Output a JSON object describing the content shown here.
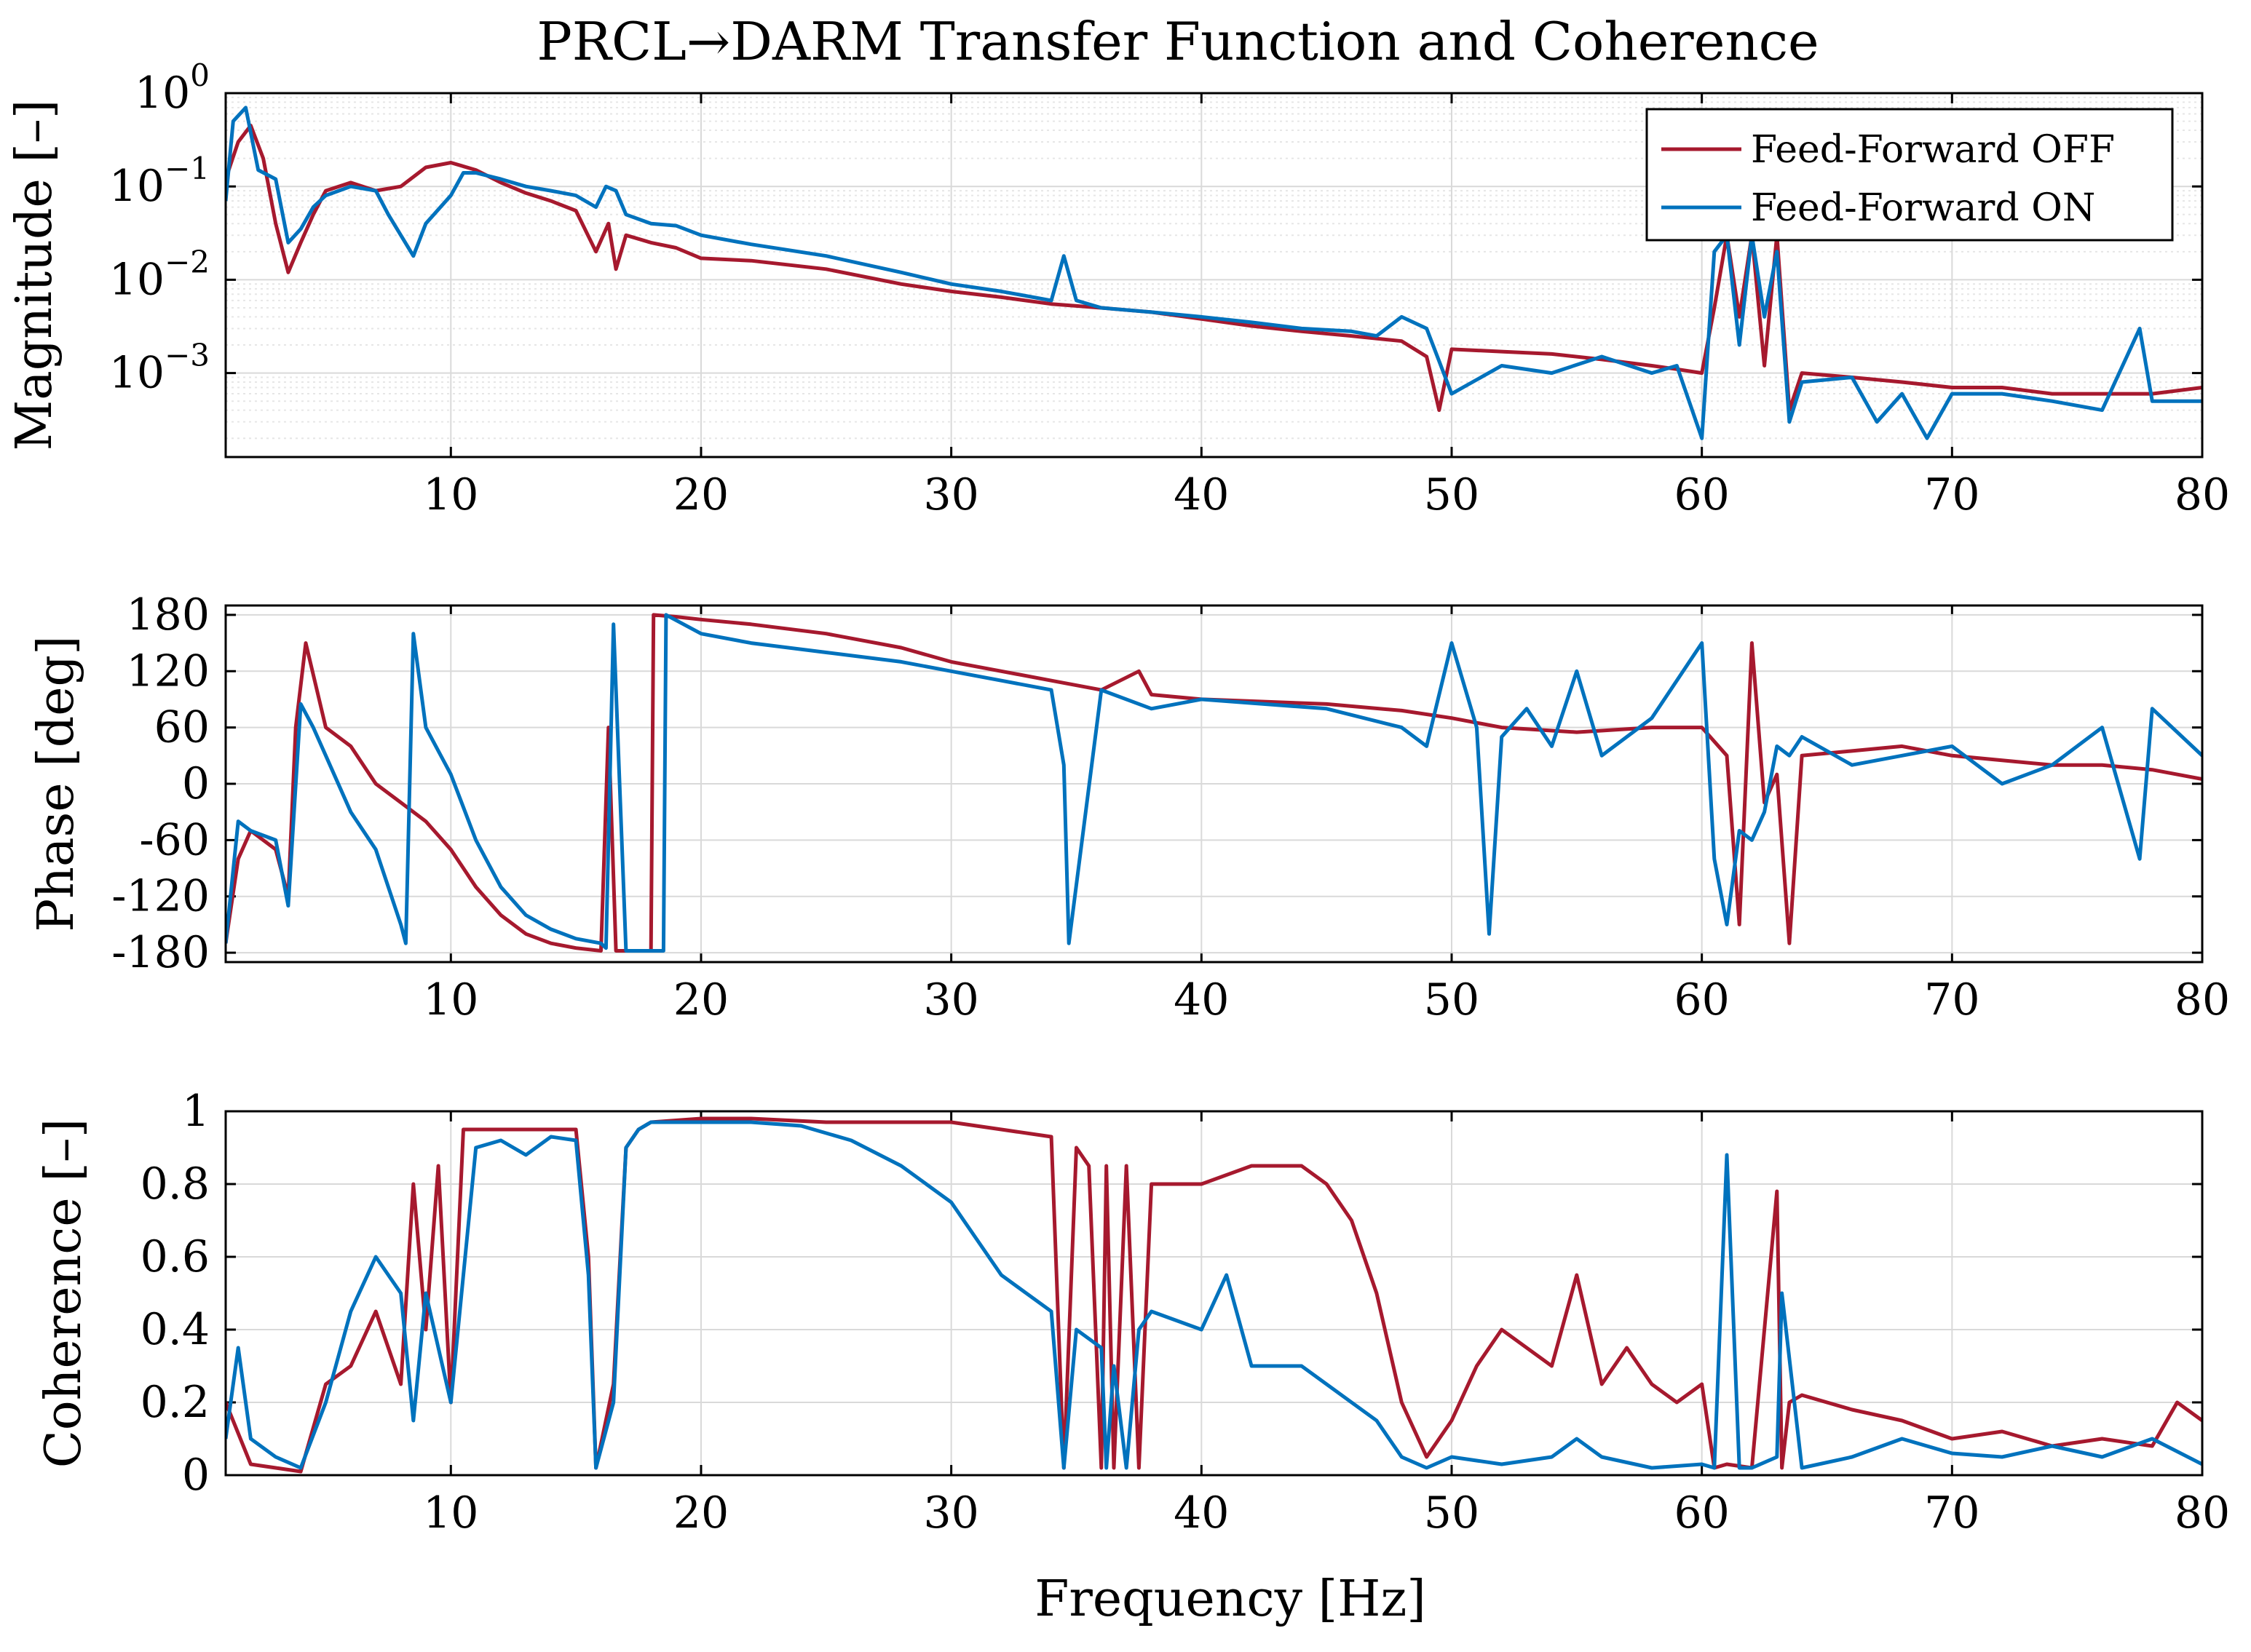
{
  "figure": {
    "title": "PRCL→DARM Transfer Function and Coherence",
    "xlabel": "Frequency [Hz]"
  },
  "colors": {
    "ff_off": "#A6192E",
    "ff_on": "#0072BD",
    "grid": "#d9d9d9",
    "minor_grid": "#e6e6e6"
  },
  "legend": {
    "entries": [
      {
        "name": "Feed-Forward OFF",
        "color_key": "ff_off"
      },
      {
        "name": "Feed-Forward ON",
        "color_key": "ff_on"
      }
    ]
  },
  "chart_data": [
    {
      "type": "line",
      "id": "magnitude",
      "title": "PRCL→DARM Transfer Function and Coherence",
      "ylabel": "Magnitude [–]",
      "xlabel": "",
      "xlim": [
        1,
        80
      ],
      "ylim_log10": [
        -3.9,
        0
      ],
      "yscale": "log",
      "xticks": [
        10,
        20,
        30,
        40,
        50,
        60,
        70,
        80
      ],
      "xtick_labels": [
        "10",
        "20",
        "30",
        "40",
        "50",
        "60",
        "70",
        "80"
      ],
      "yticks_log10": [
        0,
        -1,
        -2,
        -3
      ],
      "ytick_labels": [
        {
          "base": "10",
          "exp": "0"
        },
        {
          "base": "10",
          "exp": "−1"
        },
        {
          "base": "10",
          "exp": "−2"
        },
        {
          "base": "10",
          "exp": "−3"
        }
      ],
      "series": [
        {
          "name": "Feed-Forward OFF",
          "x": [
            1,
            1.5,
            2,
            2.5,
            3,
            3.5,
            4,
            4.5,
            5,
            6,
            7,
            8,
            9,
            10,
            11,
            12,
            13,
            14,
            15,
            15.8,
            16.3,
            16.6,
            17,
            18,
            19,
            20,
            22,
            25,
            28,
            30,
            32,
            34,
            36,
            38,
            40,
            42,
            44,
            46,
            48,
            49,
            49.5,
            50,
            52,
            54,
            56,
            58,
            59,
            60,
            60.5,
            61,
            61.5,
            62,
            62.5,
            63,
            63.5,
            64,
            66,
            68,
            70,
            72,
            74,
            76,
            78,
            80
          ],
          "y": [
            0.12,
            0.3,
            0.45,
            0.2,
            0.04,
            0.012,
            0.025,
            0.05,
            0.09,
            0.11,
            0.09,
            0.1,
            0.16,
            0.18,
            0.15,
            0.11,
            0.085,
            0.07,
            0.055,
            0.02,
            0.04,
            0.013,
            0.03,
            0.025,
            0.022,
            0.017,
            0.016,
            0.013,
            0.009,
            0.0075,
            0.0065,
            0.0055,
            0.005,
            0.0045,
            0.0038,
            0.0032,
            0.0028,
            0.0025,
            0.0022,
            0.0015,
            0.0004,
            0.0018,
            0.0017,
            0.0016,
            0.0014,
            0.0012,
            0.0011,
            0.001,
            0.005,
            0.03,
            0.004,
            0.03,
            0.0012,
            0.03,
            0.0004,
            0.001,
            0.0009,
            0.0008,
            0.0007,
            0.0007,
            0.0006,
            0.0006,
            0.0006,
            0.0007
          ]
        },
        {
          "name": "Feed-Forward ON",
          "x": [
            1,
            1.3,
            1.8,
            2.3,
            3,
            3.5,
            4,
            4.5,
            5,
            6,
            7,
            7.5,
            8.5,
            9,
            10,
            10.5,
            11,
            12,
            13,
            14,
            15,
            15.8,
            16.2,
            16.6,
            17,
            18,
            19,
            20,
            22,
            25,
            28,
            30,
            32,
            34,
            34.5,
            35,
            36,
            38,
            40,
            42,
            44,
            46,
            47,
            48,
            49,
            50,
            52,
            54,
            56,
            58,
            59,
            60,
            60.5,
            61,
            61.5,
            62,
            62.5,
            63,
            63.5,
            64,
            66,
            67,
            68,
            69,
            70,
            72,
            74,
            76,
            77.5,
            78,
            80
          ],
          "y": [
            0.07,
            0.5,
            0.7,
            0.15,
            0.12,
            0.025,
            0.035,
            0.06,
            0.08,
            0.1,
            0.09,
            0.05,
            0.018,
            0.04,
            0.08,
            0.14,
            0.14,
            0.12,
            0.1,
            0.09,
            0.08,
            0.06,
            0.1,
            0.09,
            0.05,
            0.04,
            0.038,
            0.03,
            0.024,
            0.018,
            0.012,
            0.009,
            0.0075,
            0.006,
            0.018,
            0.006,
            0.005,
            0.0045,
            0.004,
            0.0035,
            0.003,
            0.0028,
            0.0025,
            0.004,
            0.003,
            0.0006,
            0.0012,
            0.001,
            0.0015,
            0.001,
            0.0012,
            0.0002,
            0.02,
            0.03,
            0.002,
            0.03,
            0.004,
            0.02,
            0.0003,
            0.0008,
            0.0009,
            0.0003,
            0.0006,
            0.0002,
            0.0006,
            0.0006,
            0.0005,
            0.0004,
            0.003,
            0.0005,
            0.0005
          ]
        }
      ]
    },
    {
      "type": "line",
      "id": "phase",
      "ylabel": "Phase [deg]",
      "xlabel": "",
      "xlim": [
        1,
        80
      ],
      "ylim": [
        -190,
        190
      ],
      "xticks": [
        10,
        20,
        30,
        40,
        50,
        60,
        70,
        80
      ],
      "xtick_labels": [
        "10",
        "20",
        "30",
        "40",
        "50",
        "60",
        "70",
        "80"
      ],
      "yticks": [
        180,
        120,
        60,
        0,
        -60,
        -120,
        -180
      ],
      "ytick_labels": [
        "180",
        "120",
        "60",
        "0",
        "-60",
        "-120",
        "-180"
      ],
      "series": [
        {
          "name": "Feed-Forward OFF",
          "x": [
            1,
            1.5,
            2,
            3,
            3.5,
            3.8,
            4.2,
            5,
            6,
            7,
            8,
            9,
            10,
            11,
            12,
            13,
            14,
            15,
            16,
            16.3,
            16.6,
            18,
            18.1,
            19,
            20,
            22,
            25,
            28,
            30,
            32,
            34,
            36,
            37.5,
            38,
            40,
            45,
            48,
            50,
            52,
            55,
            58,
            60,
            61,
            61.5,
            62,
            62.5,
            63,
            63.5,
            64,
            66,
            68,
            70,
            72,
            74,
            76,
            78,
            80
          ],
          "y": [
            -170,
            -80,
            -50,
            -70,
            -120,
            60,
            150,
            60,
            40,
            0,
            -20,
            -40,
            -70,
            -110,
            -140,
            -160,
            -170,
            -175,
            -178,
            60,
            -178,
            -178,
            180,
            178,
            175,
            170,
            160,
            145,
            130,
            120,
            110,
            100,
            120,
            95,
            90,
            85,
            78,
            70,
            60,
            55,
            60,
            60,
            30,
            -150,
            150,
            -20,
            10,
            -170,
            30,
            35,
            40,
            30,
            25,
            20,
            20,
            15,
            5
          ]
        },
        {
          "name": "Feed-Forward ON",
          "x": [
            1,
            1.5,
            2,
            3,
            3.5,
            4,
            4.5,
            5,
            6,
            7,
            8,
            8.2,
            8.5,
            9,
            10,
            11,
            12,
            13,
            14,
            15,
            16,
            16.2,
            16.5,
            17,
            18.5,
            18.6,
            20,
            22,
            25,
            28,
            30,
            32,
            34,
            34.5,
            34.7,
            36,
            38,
            40,
            45,
            48,
            49,
            50,
            51,
            51.5,
            52,
            53,
            54,
            55,
            56,
            58,
            60,
            60.5,
            61,
            61.5,
            62,
            62.5,
            63,
            63.5,
            64,
            66,
            68,
            70,
            72,
            74,
            76,
            77.5,
            78,
            80
          ],
          "y": [
            -170,
            -40,
            -50,
            -60,
            -130,
            85,
            60,
            30,
            -30,
            -70,
            -150,
            -170,
            160,
            60,
            10,
            -60,
            -110,
            -140,
            -155,
            -165,
            -170,
            -175,
            170,
            -178,
            -178,
            180,
            160,
            150,
            140,
            130,
            120,
            110,
            100,
            20,
            -170,
            100,
            80,
            90,
            80,
            60,
            40,
            150,
            60,
            -160,
            50,
            80,
            40,
            120,
            30,
            70,
            150,
            -80,
            -150,
            -50,
            -60,
            -30,
            40,
            30,
            50,
            20,
            30,
            40,
            0,
            20,
            60,
            -80,
            80,
            30
          ]
        }
      ]
    },
    {
      "type": "line",
      "id": "coherence",
      "ylabel": "Coherence [–]",
      "xlabel": "Frequency [Hz]",
      "xlim": [
        1,
        80
      ],
      "ylim": [
        0,
        1
      ],
      "xticks": [
        10,
        20,
        30,
        40,
        50,
        60,
        70,
        80
      ],
      "xtick_labels": [
        "10",
        "20",
        "30",
        "40",
        "50",
        "60",
        "70",
        "80"
      ],
      "yticks": [
        0,
        0.2,
        0.4,
        0.6,
        0.8,
        1
      ],
      "ytick_labels": [
        "0",
        "0.2",
        "0.4",
        "0.6",
        "0.8",
        "1"
      ],
      "series": [
        {
          "name": "Feed-Forward OFF",
          "x": [
            1,
            2,
            3,
            4,
            5,
            6,
            7,
            8,
            8.5,
            9,
            9.5,
            10,
            10.5,
            11,
            13,
            15,
            15.5,
            15.8,
            16.5,
            17,
            17.5,
            18,
            20,
            22,
            25,
            28,
            30,
            32,
            34,
            34.5,
            35,
            35.5,
            36,
            36.2,
            36.5,
            37,
            37.5,
            38,
            40,
            42,
            44,
            45,
            46,
            47,
            48,
            49,
            50,
            51,
            52,
            53,
            54,
            55,
            56,
            57,
            58,
            59,
            60,
            60.5,
            61,
            62,
            63,
            63.2,
            63.5,
            64,
            66,
            68,
            70,
            72,
            74,
            76,
            78,
            79,
            80
          ],
          "y": [
            0.2,
            0.03,
            0.02,
            0.01,
            0.25,
            0.3,
            0.45,
            0.25,
            0.8,
            0.4,
            0.85,
            0.2,
            0.95,
            0.95,
            0.95,
            0.95,
            0.6,
            0.02,
            0.25,
            0.9,
            0.95,
            0.97,
            0.98,
            0.98,
            0.97,
            0.97,
            0.97,
            0.95,
            0.93,
            0.02,
            0.9,
            0.85,
            0.02,
            0.85,
            0.02,
            0.85,
            0.02,
            0.8,
            0.8,
            0.85,
            0.85,
            0.8,
            0.7,
            0.5,
            0.2,
            0.05,
            0.15,
            0.3,
            0.4,
            0.35,
            0.3,
            0.55,
            0.25,
            0.35,
            0.25,
            0.2,
            0.25,
            0.02,
            0.03,
            0.02,
            0.78,
            0.02,
            0.2,
            0.22,
            0.18,
            0.15,
            0.1,
            0.12,
            0.08,
            0.1,
            0.08,
            0.2,
            0.15
          ]
        },
        {
          "name": "Feed-Forward ON",
          "x": [
            1,
            1.5,
            2,
            3,
            4,
            5,
            6,
            7,
            8,
            8.5,
            9,
            10,
            11,
            12,
            13,
            14,
            15,
            15.5,
            15.8,
            16.5,
            17,
            17.5,
            18,
            20,
            22,
            24,
            26,
            28,
            30,
            31,
            32,
            33,
            34,
            34.5,
            35,
            36,
            36.2,
            36.5,
            37,
            37.5,
            38,
            40,
            41,
            42,
            44,
            46,
            47,
            48,
            49,
            50,
            52,
            54,
            55,
            56,
            58,
            60,
            60.5,
            61,
            61.5,
            62,
            63,
            63.2,
            64,
            66,
            68,
            70,
            72,
            74,
            76,
            78,
            80
          ],
          "y": [
            0.1,
            0.35,
            0.1,
            0.05,
            0.02,
            0.2,
            0.45,
            0.6,
            0.5,
            0.15,
            0.5,
            0.2,
            0.9,
            0.92,
            0.88,
            0.93,
            0.92,
            0.55,
            0.02,
            0.2,
            0.9,
            0.95,
            0.97,
            0.97,
            0.97,
            0.96,
            0.92,
            0.85,
            0.75,
            0.65,
            0.55,
            0.5,
            0.45,
            0.02,
            0.4,
            0.35,
            0.02,
            0.3,
            0.02,
            0.4,
            0.45,
            0.4,
            0.55,
            0.3,
            0.3,
            0.2,
            0.15,
            0.05,
            0.02,
            0.05,
            0.03,
            0.05,
            0.1,
            0.05,
            0.02,
            0.03,
            0.02,
            0.88,
            0.02,
            0.02,
            0.05,
            0.5,
            0.02,
            0.05,
            0.1,
            0.06,
            0.05,
            0.08,
            0.05,
            0.1,
            0.03
          ]
        }
      ]
    }
  ]
}
